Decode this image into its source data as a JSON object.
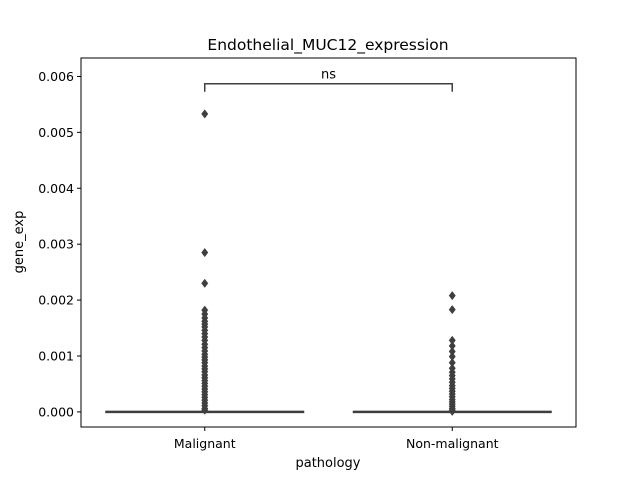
{
  "chart_data": {
    "type": "box",
    "title": "Endothelial_MUC12_expression",
    "xlabel": "pathology",
    "ylabel": "gene_exp",
    "categories": [
      "Malignant",
      "Non-malignant"
    ],
    "ylim": [
      -0.00027,
      0.00633
    ],
    "yticks": [
      0.0,
      0.001,
      0.002,
      0.003,
      0.004,
      0.005,
      0.006
    ],
    "ytick_labels": [
      "0.000",
      "0.001",
      "0.002",
      "0.003",
      "0.004",
      "0.005",
      "0.006"
    ],
    "grid": false,
    "box_color": "#3f3f3f",
    "series": [
      {
        "category": "Malignant",
        "median": 0.0,
        "q1": 0.0,
        "q3": 0.0,
        "whisker_low": 0.0,
        "whisker_high": 0.0,
        "outliers": [
          0.00533,
          0.00285,
          0.0023,
          0.00182,
          0.00175,
          0.00168,
          0.00162,
          0.00157,
          0.00152,
          0.00146,
          0.0014,
          0.00134,
          0.00128,
          0.00121,
          0.00115,
          0.00109,
          0.00103,
          0.00098,
          0.00093,
          0.00088,
          0.00082,
          0.00077,
          0.00072,
          0.00066,
          0.00061,
          0.00056,
          0.00051,
          0.00046,
          0.00041,
          0.00036,
          0.00031,
          0.00026,
          0.00021,
          0.00016,
          0.00011,
          6e-05,
          3e-05
        ]
      },
      {
        "category": "Non-malignant",
        "median": 0.0,
        "q1": 0.0,
        "q3": 0.0,
        "whisker_low": 0.0,
        "whisker_high": 0.0,
        "outliers": [
          0.00208,
          0.00183,
          0.00128,
          0.00118,
          0.00108,
          0.00099,
          0.00088,
          0.00078,
          0.00071,
          0.00065,
          0.00059,
          0.00053,
          0.00047,
          0.00042,
          0.00037,
          0.00032,
          0.00027,
          0.00022,
          0.00018,
          0.00014,
          0.0001,
          6e-05,
          3e-05,
          1e-05
        ]
      }
    ],
    "annotations": [
      {
        "text": "ns",
        "from": "Malignant",
        "to": "Non-malignant",
        "y": 0.00587
      }
    ]
  }
}
